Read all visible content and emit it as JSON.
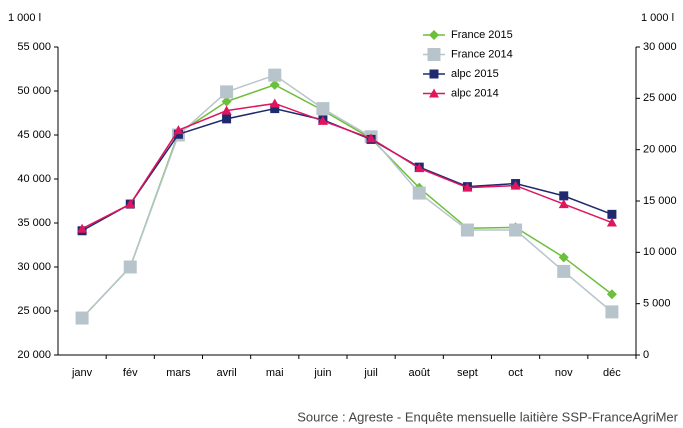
{
  "chart_data": {
    "type": "line",
    "y_unit": "1 000 l",
    "y2_unit": "1 000 l",
    "categories": [
      "janv",
      "fév",
      "mars",
      "avril",
      "mai",
      "juin",
      "juil",
      "août",
      "sept",
      "oct",
      "nov",
      "déc"
    ],
    "series": [
      {
        "name": "France 2015",
        "color": "#6cbf3a",
        "marker": "diamond",
        "values": [
          24200,
          30000,
          45200,
          48800,
          50700,
          47800,
          44600,
          39000,
          34400,
          34500,
          31100,
          26900
        ]
      },
      {
        "name": "France 2014",
        "color": "#b8c4cc",
        "marker": "square",
        "values": [
          24200,
          30000,
          45000,
          49900,
          51800,
          48000,
          44800,
          38400,
          34200,
          34200,
          29500,
          24900
        ]
      },
      {
        "name": "alpc 2015",
        "color": "#1f2a6e",
        "marker": "square",
        "axis": "y2",
        "values": [
          12100,
          14700,
          21500,
          23000,
          24000,
          22900,
          21000,
          18300,
          16400,
          16700,
          15500,
          13700
        ]
      },
      {
        "name": "alpc 2014",
        "color": "#e0145f",
        "marker": "triangle",
        "axis": "y2",
        "values": [
          12300,
          14700,
          21900,
          23800,
          24500,
          22800,
          21100,
          18200,
          16300,
          16500,
          14700,
          12900
        ]
      }
    ],
    "ylim": [
      20000,
      55000
    ],
    "yticks": [
      {
        "value": 20000,
        "label": "20 000"
      },
      {
        "value": 25000,
        "label": "25 000"
      },
      {
        "value": 30000,
        "label": "30 000"
      },
      {
        "value": 35000,
        "label": "35 000"
      },
      {
        "value": 40000,
        "label": "40 000"
      },
      {
        "value": 45000,
        "label": "45 000"
      },
      {
        "value": 50000,
        "label": "50 000"
      },
      {
        "value": 55000,
        "label": "55 000"
      }
    ],
    "y2lim": [
      0,
      30000
    ],
    "y2ticks": [
      0,
      {
        "value": 5000,
        "label": "5 000"
      },
      {
        "value": 10000,
        "label": "10 000"
      },
      {
        "value": 15000,
        "label": "15 000"
      },
      {
        "value": 20000,
        "label": "20 000"
      },
      {
        "value": 25000,
        "label": "25 000"
      },
      {
        "value": 30000,
        "label": "30 000"
      }
    ],
    "source": "Source : Agreste - Enquête mensuelle laitière SSP-FranceAgriMer"
  }
}
